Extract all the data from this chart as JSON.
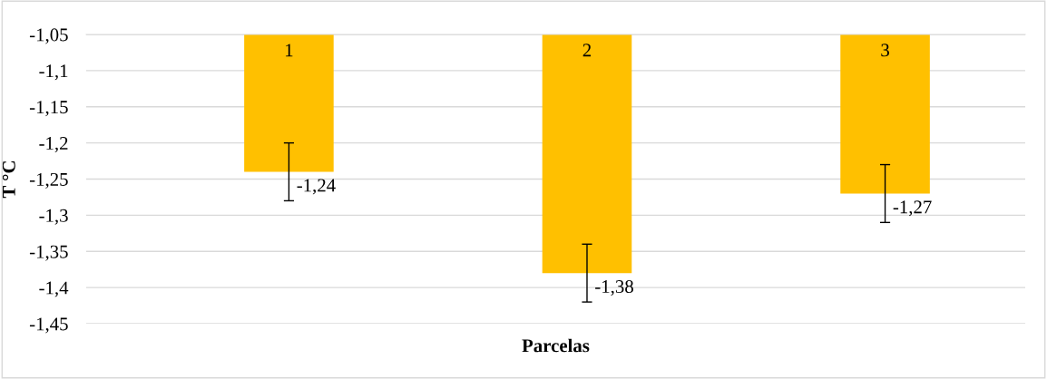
{
  "chart_data": {
    "type": "bar",
    "xlabel": "Parcelas",
    "ylabel": "T °C",
    "categories": [
      "1",
      "2",
      "3"
    ],
    "values": [
      -1.24,
      -1.38,
      -1.27
    ],
    "errors": [
      0.04,
      0.04,
      0.04
    ],
    "value_labels": [
      "-1,24",
      "-1,38",
      "-1,27"
    ],
    "color": "#ffc000",
    "ylim": [
      -1.45,
      -1.05
    ],
    "yticks": [
      {
        "value": -1.45,
        "label": "-1,45"
      },
      {
        "value": -1.4,
        "label": "-1,4"
      },
      {
        "value": -1.35,
        "label": "-1,35"
      },
      {
        "value": -1.3,
        "label": "-1,3"
      },
      {
        "value": -1.25,
        "label": "-1,25"
      },
      {
        "value": -1.2,
        "label": "-1,2"
      },
      {
        "value": -1.15,
        "label": "-1,15"
      },
      {
        "value": -1.1,
        "label": "-1,1"
      },
      {
        "value": -1.05,
        "label": "-1,05"
      }
    ],
    "grid": "y",
    "legend": false
  }
}
